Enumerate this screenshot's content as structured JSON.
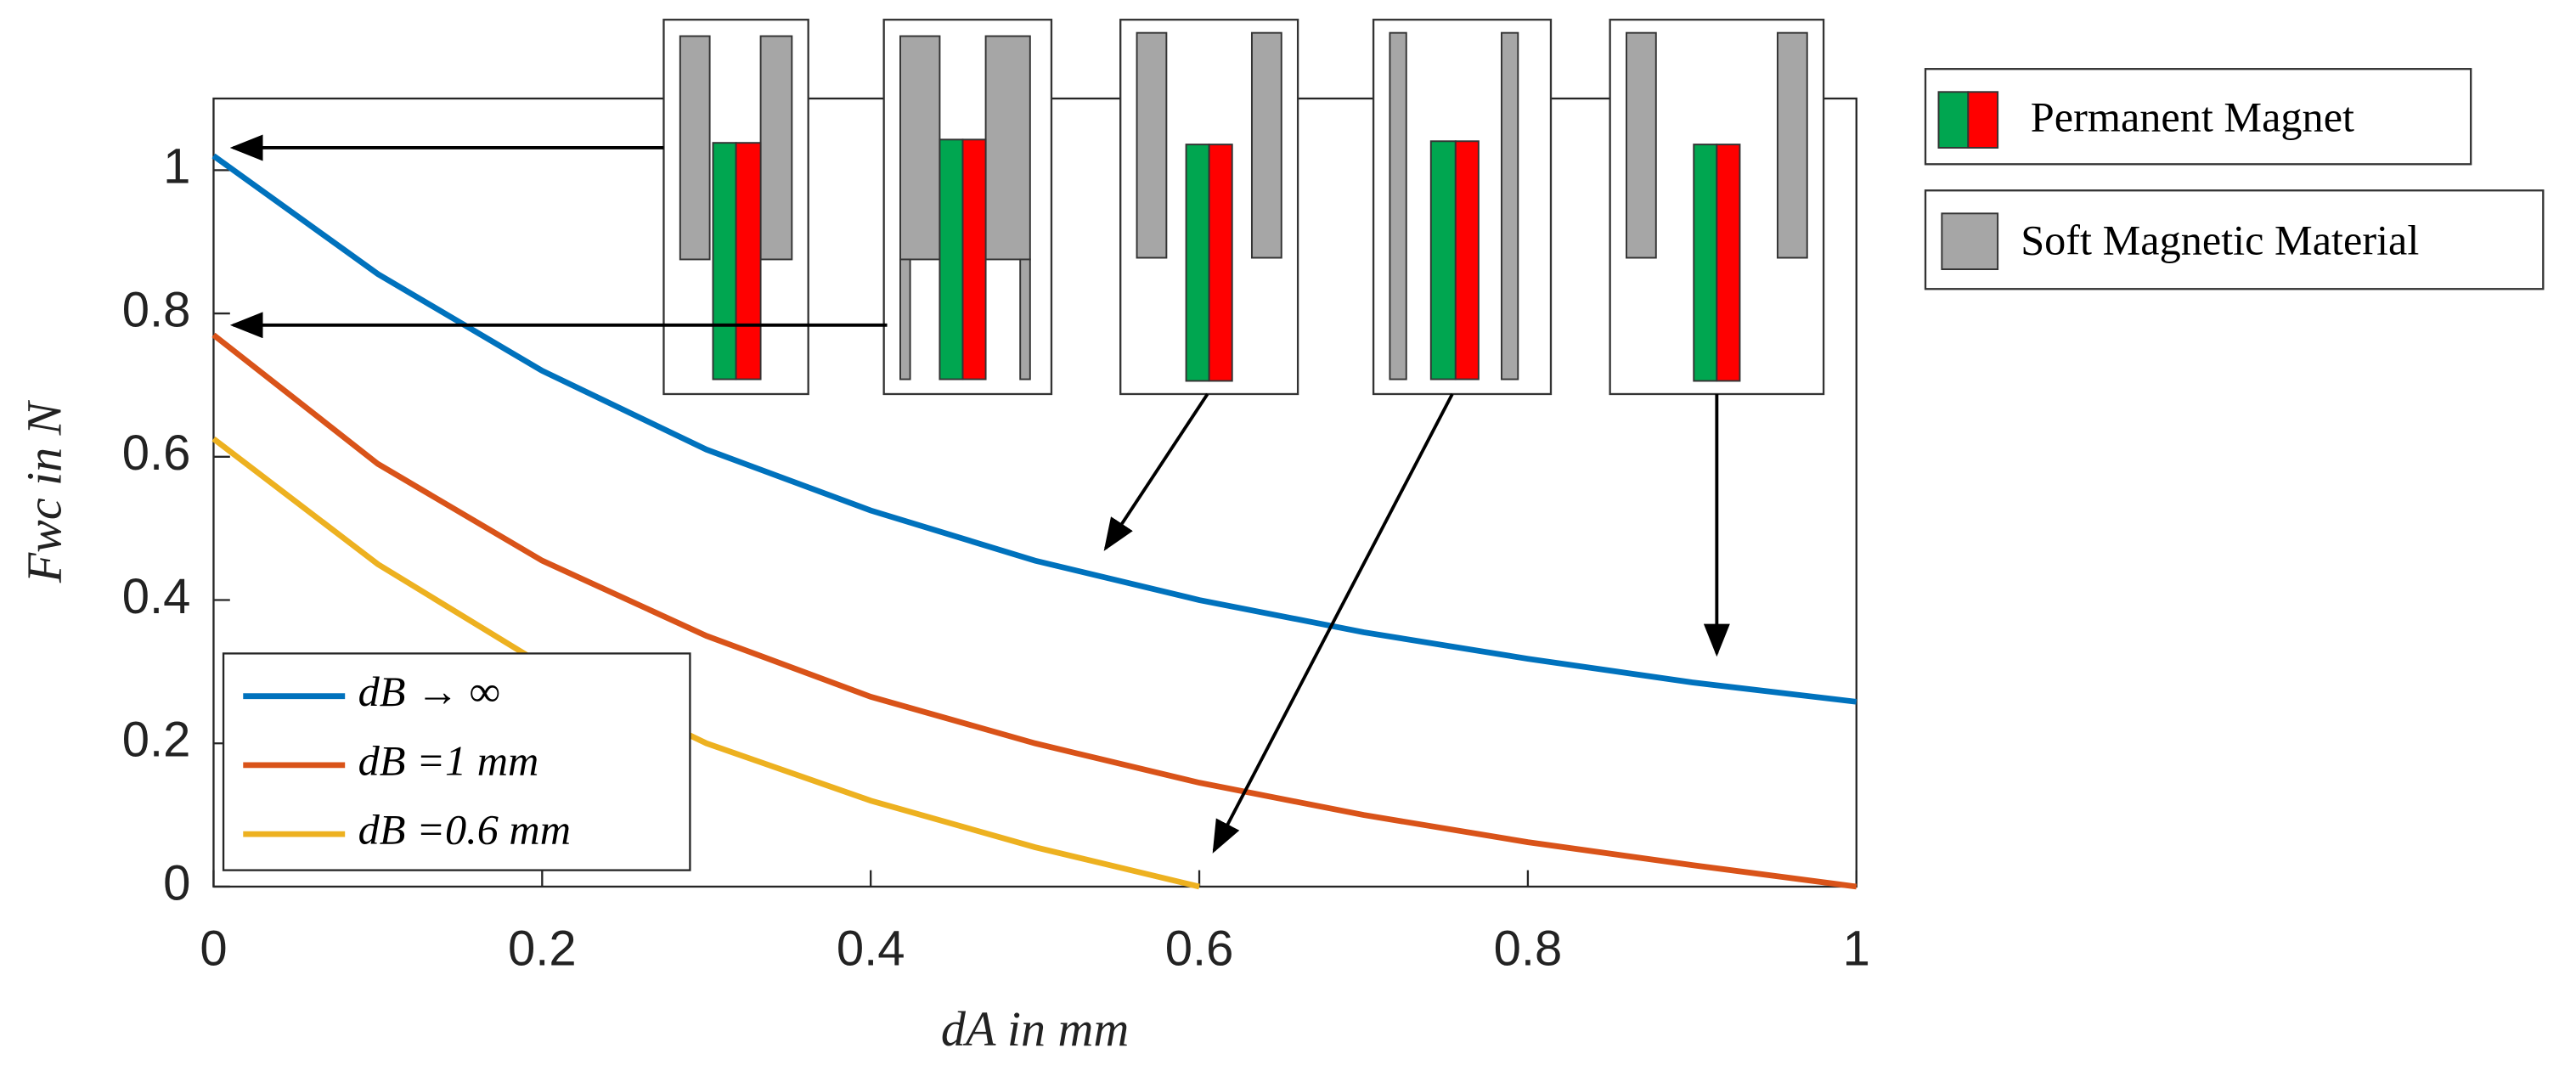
{
  "chart_data": {
    "type": "line",
    "xlabel": "dA in mm",
    "ylabel": "Fwc in N",
    "x": [
      0,
      0.1,
      0.2,
      0.3,
      0.4,
      0.5,
      0.6,
      0.7,
      0.8,
      0.9,
      1
    ],
    "series": [
      {
        "name": "dB → ∞",
        "color": "#0072BD",
        "values": [
          1.02,
          0.855,
          0.72,
          0.61,
          0.525,
          0.455,
          0.4,
          0.355,
          0.318,
          0.285,
          0.258
        ]
      },
      {
        "name": "dB =1 mm",
        "color": "#D95319",
        "values": [
          0.77,
          0.59,
          0.455,
          0.35,
          0.265,
          0.2,
          0.145,
          0.1,
          0.062,
          0.03,
          0
        ]
      },
      {
        "name": "dB =0.6 mm",
        "color": "#EDB120",
        "values": [
          0.625,
          0.45,
          0.31,
          0.2,
          0.12,
          0.055,
          0,
          null,
          null,
          null,
          null
        ]
      }
    ],
    "xlim": [
      0,
      1
    ],
    "xticks": [
      0,
      0.2,
      0.4,
      0.6,
      0.8,
      1
    ],
    "ylim": [
      0,
      1.1
    ],
    "yticks": [
      0,
      0.2,
      0.4,
      0.6,
      0.8,
      1
    ],
    "legend": "lower left",
    "key": [
      "Permanent Magnet",
      "Soft Magnetic Material"
    ]
  }
}
